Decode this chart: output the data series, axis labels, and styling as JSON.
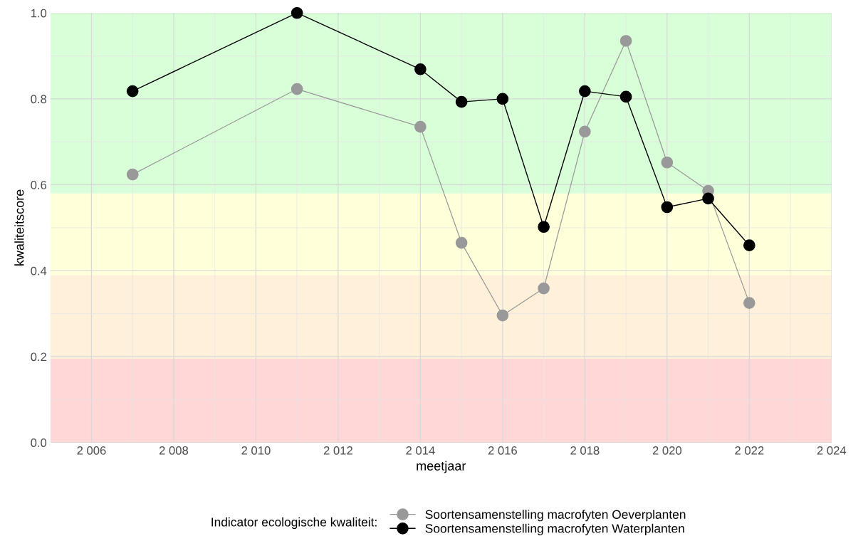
{
  "chart_data": {
    "type": "line",
    "xlabel": "meetjaar",
    "ylabel": "kwaliteitscore",
    "legend_title": "Indicator ecologische kwaliteit:",
    "x": [
      2007,
      2011,
      2014,
      2015,
      2016,
      2017,
      2018,
      2019,
      2020,
      2021,
      2022
    ],
    "series": [
      {
        "name": "Soortensamenstelling macrofyten Oeverplanten",
        "color": "#999999",
        "values": [
          0.624,
          0.823,
          0.735,
          0.465,
          0.296,
          0.359,
          0.724,
          0.935,
          0.652,
          0.586,
          0.325
        ]
      },
      {
        "name": "Soortensamenstelling macrofyten Waterplanten",
        "color": "#000000",
        "values": [
          0.818,
          1.0,
          0.869,
          0.793,
          0.8,
          0.502,
          0.818,
          0.805,
          0.548,
          0.568,
          0.459
        ]
      }
    ],
    "bands": [
      {
        "axis": "y",
        "from": 0.0,
        "to": 0.195,
        "color": "#ffd7d7"
      },
      {
        "axis": "y",
        "from": 0.195,
        "to": 0.39,
        "color": "#fff0d9"
      },
      {
        "axis": "y",
        "from": 0.39,
        "to": 0.58,
        "color": "#ffffd9"
      },
      {
        "axis": "y",
        "from": 0.58,
        "to": 1.0,
        "color": "#d9ffd9"
      }
    ],
    "xlim": [
      2005,
      2024
    ],
    "ylim": [
      0,
      1
    ],
    "xticks": [
      {
        "value": 2006,
        "label": "2 006"
      },
      {
        "value": 2008,
        "label": "2 008"
      },
      {
        "value": 2010,
        "label": "2 010"
      },
      {
        "value": 2012,
        "label": "2 012"
      },
      {
        "value": 2014,
        "label": "2 014"
      },
      {
        "value": 2016,
        "label": "2 016"
      },
      {
        "value": 2018,
        "label": "2 018"
      },
      {
        "value": 2020,
        "label": "2 020"
      },
      {
        "value": 2022,
        "label": "2 022"
      },
      {
        "value": 2024,
        "label": "2 024"
      }
    ],
    "yticks": [
      {
        "value": 0,
        "label": "0.0"
      },
      {
        "value": 0.2,
        "label": "0.2"
      },
      {
        "value": 0.4,
        "label": "0.4"
      },
      {
        "value": 0.6,
        "label": "0.6"
      },
      {
        "value": 0.8,
        "label": "0.8"
      },
      {
        "value": 1,
        "label": "1.0"
      }
    ],
    "grid": true,
    "legend": "bottom",
    "marker": "circle",
    "line_style": "solid"
  }
}
